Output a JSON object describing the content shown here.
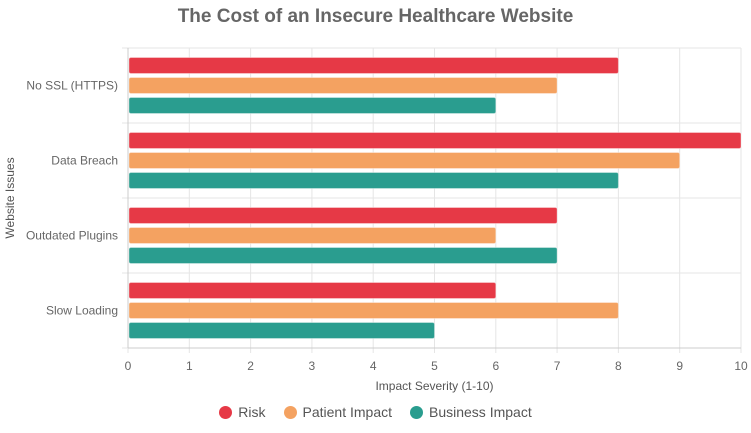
{
  "chart_data": {
    "type": "bar",
    "orientation": "horizontal",
    "title": "The Cost of an Insecure Healthcare Website",
    "xlabel": "Impact Severity (1-10)",
    "ylabel": "Website Issues",
    "categories": [
      "No SSL (HTTPS)",
      "Data Breach",
      "Outdated Plugins",
      "Slow Loading"
    ],
    "xlim": [
      0,
      10
    ],
    "xticks": [
      "0",
      "1",
      "2",
      "3",
      "4",
      "5",
      "6",
      "7",
      "8",
      "9",
      "10"
    ],
    "grid": true,
    "legend_position": "bottom",
    "series": [
      {
        "name": "Risk",
        "color": "#e63946",
        "values": [
          8,
          10,
          7,
          6
        ]
      },
      {
        "name": "Patient Impact",
        "color": "#f4a261",
        "values": [
          7,
          9,
          6,
          8
        ]
      },
      {
        "name": "Business Impact",
        "color": "#2a9d8f",
        "values": [
          6,
          8,
          7,
          5
        ]
      }
    ]
  }
}
